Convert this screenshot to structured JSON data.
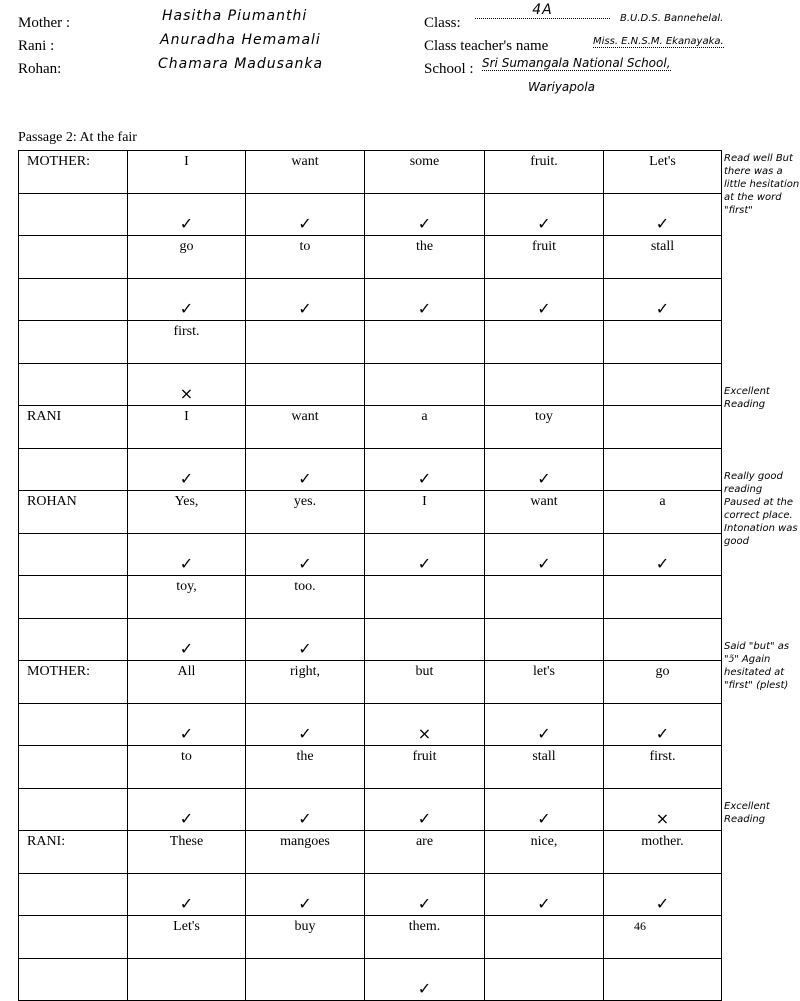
{
  "header": {
    "mother_label": "Mother :",
    "mother_value": "Hasitha Piumanthi",
    "rani_label": "Rani :",
    "rani_value": "Anuradha Hemamali",
    "rohan_label": "Rohan:",
    "rohan_value": "Chamara Madusanka",
    "class_label": "Class:",
    "class_value": "4A",
    "signature_note": "B.U.D.S. Bannehelal.",
    "teacher_label": "Class teacher's name",
    "teacher_value": "Miss. E.N.S.M. Ekanayaka.",
    "school_label": "School :",
    "school_value": "Sri Sumangala National School,",
    "school_value2": "Wariyapola"
  },
  "caption": "Passage 2: At the fair",
  "rows": [
    {
      "speaker": "MOTHER:",
      "words": [
        "I",
        "want",
        "some",
        "fruit.",
        "Let's"
      ],
      "marks": [
        "✓",
        "✓",
        "✓",
        "✓",
        "✓"
      ]
    },
    {
      "speaker": "",
      "words": [
        "go",
        "to",
        "the",
        "fruit",
        "stall"
      ],
      "marks": [
        "✓",
        "✓",
        "✓",
        "✓",
        "✓"
      ]
    },
    {
      "speaker": "",
      "words": [
        "first.",
        "",
        "",
        "",
        ""
      ],
      "marks": [
        "×",
        "",
        "",
        "",
        ""
      ]
    },
    {
      "speaker": "RANI",
      "words": [
        "I",
        "want",
        "a",
        "toy",
        ""
      ],
      "marks": [
        "✓",
        "✓",
        "✓",
        "✓",
        ""
      ]
    },
    {
      "speaker": "ROHAN",
      "words": [
        "Yes,",
        "yes.",
        "I",
        "want",
        "a"
      ],
      "marks": [
        "✓",
        "✓",
        "✓",
        "✓",
        "✓"
      ]
    },
    {
      "speaker": "",
      "words": [
        "toy,",
        "too.",
        "",
        "",
        ""
      ],
      "marks": [
        "✓",
        "✓",
        "",
        "",
        ""
      ]
    },
    {
      "speaker": "MOTHER:",
      "words": [
        "All",
        "right,",
        "but",
        "let's",
        "go"
      ],
      "marks": [
        "✓",
        "✓",
        "×",
        "✓",
        "✓"
      ]
    },
    {
      "speaker": "",
      "words": [
        "to",
        "the",
        "fruit",
        "stall",
        "first."
      ],
      "marks": [
        "✓",
        "✓",
        "✓",
        "✓",
        "×"
      ]
    },
    {
      "speaker": "RANI:",
      "words": [
        "These",
        "mangoes",
        "are",
        "nice,",
        "mother."
      ],
      "marks": [
        "✓",
        "✓",
        "✓",
        "✓",
        "✓"
      ]
    },
    {
      "speaker": "",
      "words": [
        "Let's",
        "buy",
        "them.",
        "",
        "46"
      ],
      "marks": [
        "",
        "",
        "✓",
        "",
        ""
      ]
    }
  ],
  "remarks": [
    "Read well But there was a little hesitation at the word \"first\"",
    "Excellent Reading",
    "Really good reading Paused at the correct place. Intonation was good",
    "Said \"but\" as \"ɔ̃\" Again hesitated at \"first\" (plest)",
    "Excellent Reading"
  ]
}
